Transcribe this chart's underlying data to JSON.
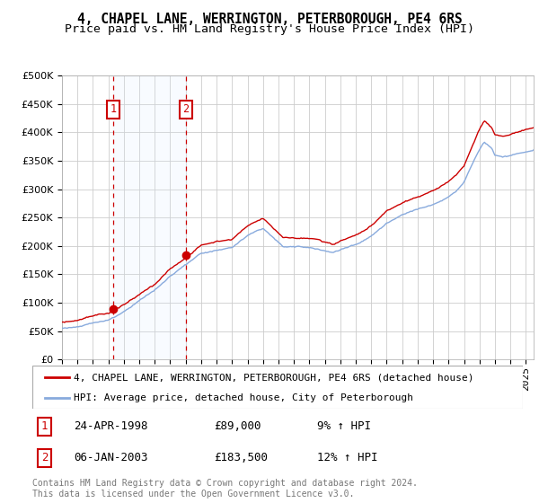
{
  "title": "4, CHAPEL LANE, WERRINGTON, PETERBOROUGH, PE4 6RS",
  "subtitle": "Price paid vs. HM Land Registry's House Price Index (HPI)",
  "ylim": [
    0,
    500000
  ],
  "yticks": [
    0,
    50000,
    100000,
    150000,
    200000,
    250000,
    300000,
    350000,
    400000,
    450000,
    500000
  ],
  "ytick_labels": [
    "£0",
    "£50K",
    "£100K",
    "£150K",
    "£200K",
    "£250K",
    "£300K",
    "£350K",
    "£400K",
    "£450K",
    "£500K"
  ],
  "xlim_start": 1995.0,
  "xlim_end": 2025.5,
  "purchase1_date": 1998.31,
  "purchase1_price": 89000,
  "purchase2_date": 2003.02,
  "purchase2_price": 183500,
  "red_line_color": "#cc0000",
  "blue_line_color": "#88aadd",
  "vline_color": "#cc0000",
  "shade_color": "#ddeeff",
  "marker_color": "#cc0000",
  "grid_color": "#cccccc",
  "bg_color": "#ffffff",
  "legend_label_red": "4, CHAPEL LANE, WERRINGTON, PETERBOROUGH, PE4 6RS (detached house)",
  "legend_label_blue": "HPI: Average price, detached house, City of Peterborough",
  "transaction1_date": "24-APR-1998",
  "transaction1_price": "£89,000",
  "transaction1_hpi": "9% ↑ HPI",
  "transaction2_date": "06-JAN-2003",
  "transaction2_price": "£183,500",
  "transaction2_hpi": "12% ↑ HPI",
  "footer": "Contains HM Land Registry data © Crown copyright and database right 2024.\nThis data is licensed under the Open Government Licence v3.0.",
  "title_fontsize": 10.5,
  "subtitle_fontsize": 9.5,
  "tick_fontsize": 8,
  "legend_fontsize": 8,
  "table_fontsize": 9,
  "footer_fontsize": 7
}
